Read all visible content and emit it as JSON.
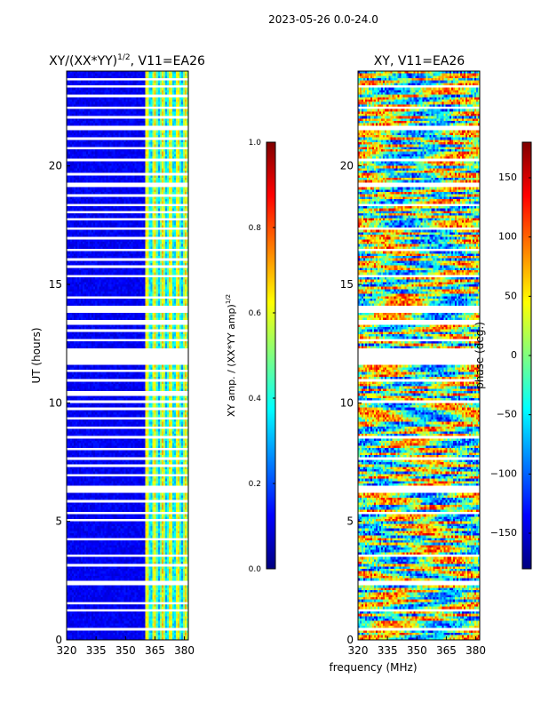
{
  "figure": {
    "suptitle": "2023-05-26 0.0-24.0",
    "xlabel": "frequency (MHz)",
    "ylabel": "UT (hours)"
  },
  "chart_data": [
    {
      "type": "heatmap",
      "title_main": "XY/(XX*YY)",
      "title_exp": "1/2",
      "title_tail": ", V11=EA26",
      "xlim": [
        320,
        382
      ],
      "ylim": [
        0,
        24
      ],
      "x_ticks": [
        320,
        335,
        350,
        365,
        380
      ],
      "y_ticks": [
        0,
        5,
        10,
        15,
        20
      ],
      "colorbar": {
        "label_main": "XY amp. / (XX*YY amp)",
        "label_exp": "1/2",
        "range": [
          0.0,
          1.0
        ],
        "ticks": [
          "0.0",
          "0.2",
          "0.4",
          "0.6",
          "0.8",
          "1.0"
        ],
        "tick_values": [
          0.0,
          0.2,
          0.4,
          0.6,
          0.8,
          1.0
        ]
      },
      "high_amp_band_mhz": [
        360,
        382
      ],
      "flagged_bands_ut": [
        [
          0.4,
          0.5
        ],
        [
          1.2,
          1.3
        ],
        [
          1.5,
          1.6
        ],
        [
          2.3,
          2.5
        ],
        [
          3.1,
          3.2
        ],
        [
          3.5,
          3.6
        ],
        [
          4.2,
          4.3
        ],
        [
          5.0,
          5.1
        ],
        [
          5.3,
          5.4
        ],
        [
          5.8,
          5.9
        ],
        [
          6.2,
          6.5
        ],
        [
          6.9,
          7.0
        ],
        [
          7.3,
          7.4
        ],
        [
          7.6,
          7.7
        ],
        [
          8.0,
          8.1
        ],
        [
          8.5,
          8.6
        ],
        [
          8.9,
          9.0
        ],
        [
          9.3,
          9.4
        ],
        [
          9.7,
          9.8
        ],
        [
          10.0,
          10.1
        ],
        [
          10.3,
          10.5
        ],
        [
          10.9,
          11.0
        ],
        [
          11.3,
          11.4
        ],
        [
          11.6,
          12.3
        ],
        [
          12.6,
          12.7
        ],
        [
          13.0,
          13.1
        ],
        [
          13.3,
          13.5
        ],
        [
          13.8,
          14.1
        ],
        [
          14.4,
          14.5
        ],
        [
          15.3,
          15.4
        ],
        [
          15.7,
          15.8
        ],
        [
          16.0,
          16.1
        ],
        [
          16.4,
          16.5
        ],
        [
          16.9,
          17.0
        ],
        [
          17.3,
          17.4
        ],
        [
          17.7,
          17.8
        ],
        [
          18.0,
          18.1
        ],
        [
          18.3,
          18.4
        ],
        [
          18.7,
          18.8
        ],
        [
          19.1,
          19.3
        ],
        [
          19.6,
          19.7
        ],
        [
          20.2,
          20.3
        ],
        [
          20.7,
          20.8
        ],
        [
          21.1,
          21.2
        ],
        [
          21.5,
          21.7
        ],
        [
          22.0,
          22.1
        ],
        [
          22.4,
          22.5
        ],
        [
          22.9,
          23.0
        ],
        [
          23.3,
          23.4
        ],
        [
          23.6,
          23.7
        ]
      ]
    },
    {
      "type": "heatmap",
      "title": "XY, V11=EA26",
      "xlim": [
        320,
        382
      ],
      "ylim": [
        0,
        24
      ],
      "x_ticks": [
        320,
        335,
        350,
        365,
        380
      ],
      "y_ticks": [
        0,
        5,
        10,
        15,
        20
      ],
      "colorbar": {
        "label": "phase (deg.)",
        "range": [
          -180,
          180
        ],
        "ticks": [
          "−150",
          "−100",
          "−50",
          "0",
          "50",
          "100",
          "150"
        ],
        "tick_values": [
          -150,
          -100,
          -50,
          0,
          50,
          100,
          150
        ]
      },
      "flagged_bands_ut": [
        [
          0.4,
          0.5
        ],
        [
          1.2,
          1.3
        ],
        [
          2.3,
          2.5
        ],
        [
          3.5,
          3.6
        ],
        [
          5.3,
          5.4
        ],
        [
          6.2,
          6.5
        ],
        [
          7.6,
          7.7
        ],
        [
          8.5,
          8.6
        ],
        [
          10.0,
          10.1
        ],
        [
          10.9,
          11.0
        ],
        [
          11.6,
          12.3
        ],
        [
          12.6,
          12.7
        ],
        [
          13.3,
          13.5
        ],
        [
          13.8,
          14.1
        ],
        [
          15.3,
          15.4
        ],
        [
          16.4,
          16.5
        ],
        [
          17.3,
          17.4
        ],
        [
          18.3,
          18.4
        ],
        [
          19.1,
          19.3
        ],
        [
          20.2,
          20.3
        ],
        [
          21.5,
          21.7
        ],
        [
          22.4,
          22.5
        ],
        [
          23.3,
          23.4
        ]
      ]
    }
  ]
}
